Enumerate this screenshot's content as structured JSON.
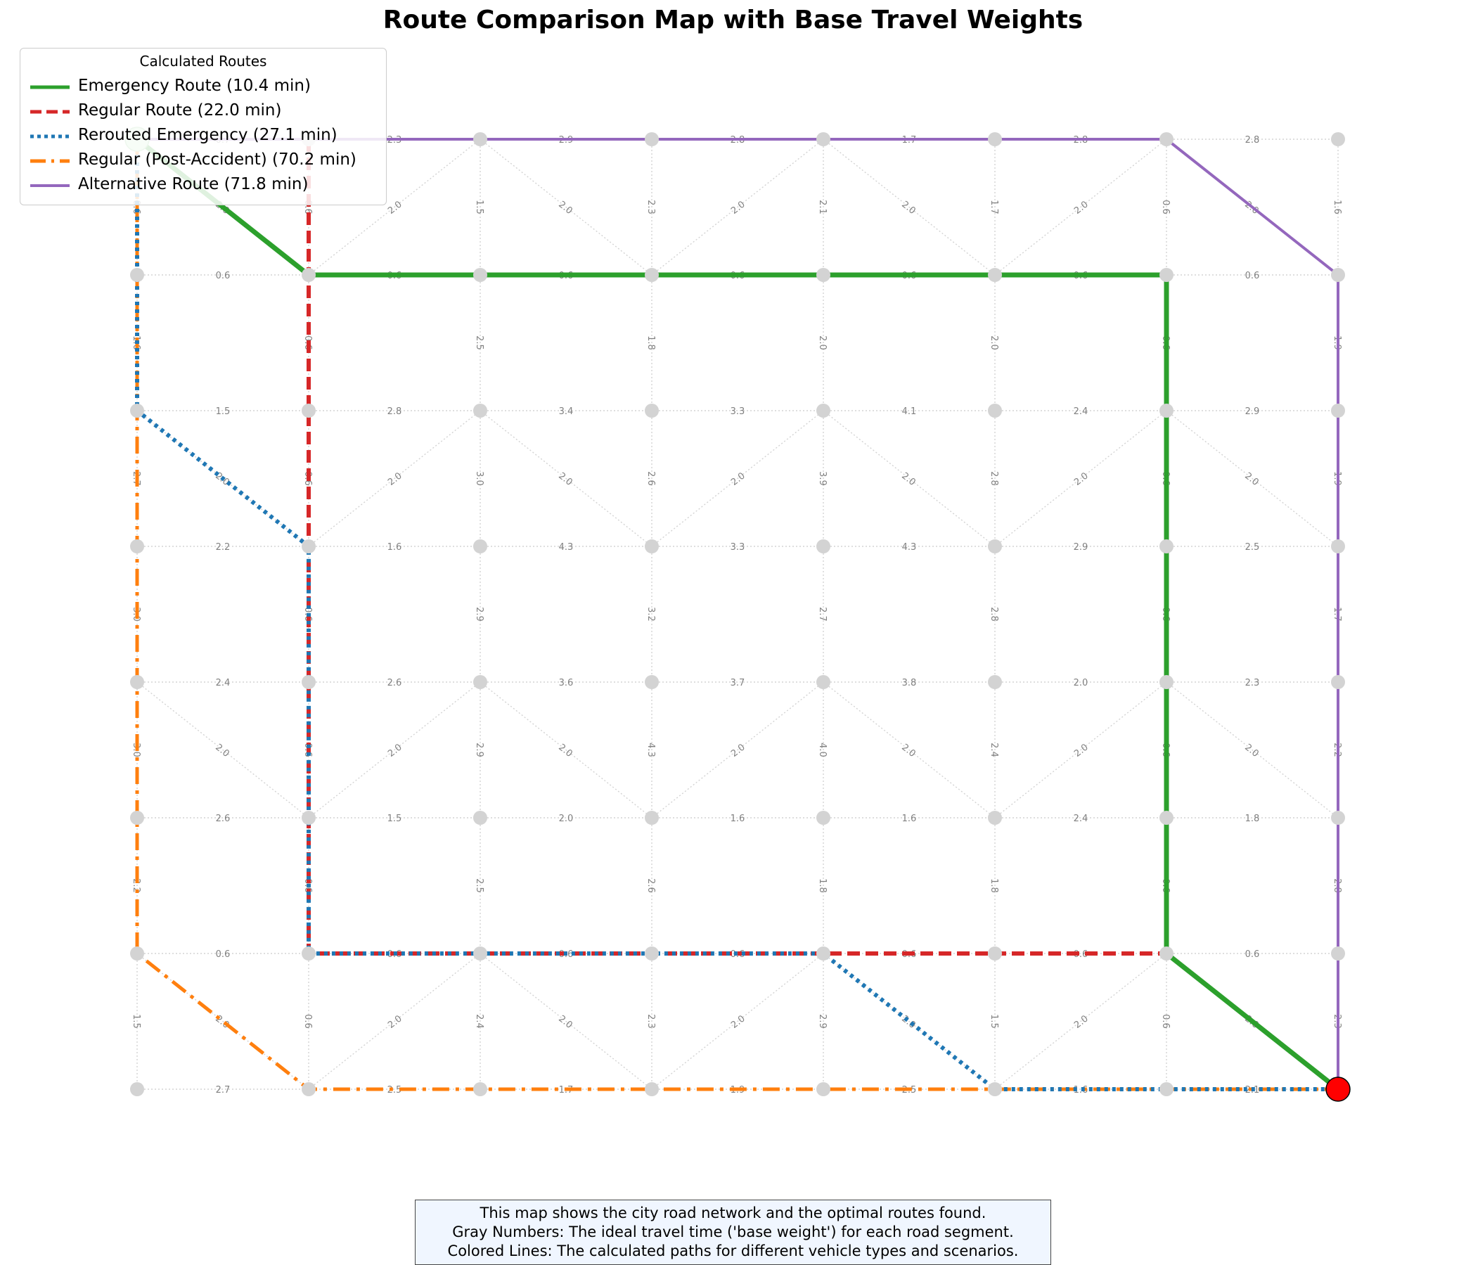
{
  "title": "Route Comparison Map with Base Travel Weights",
  "legend": {
    "title": "Calculated Routes",
    "entries": [
      {
        "label": "Emergency Route (10.4 min)",
        "color": "#2ca02c",
        "style": "solid"
      },
      {
        "label": "Regular Route (22.0 min)",
        "color": "#d62728",
        "style": "dashed"
      },
      {
        "label": "Rerouted Emergency (27.1 min)",
        "color": "#1f77b4",
        "style": "dotted"
      },
      {
        "label": "Regular (Post-Accident) (70.2 min)",
        "color": "#ff7f0e",
        "style": "dashdot"
      },
      {
        "label": "Alternative Route (71.8 min)",
        "color": "#9467bd",
        "style": "solid-thin"
      }
    ]
  },
  "caption": {
    "line1": "This map shows the city road network and the optimal routes found.",
    "line2": "Gray Numbers: The ideal travel time ('base weight') for each road segment.",
    "line3": "Colored Lines: The calculated paths for different vehicle types and scenarios."
  },
  "graph": {
    "rows": 8,
    "cols": 8,
    "start_node": [
      0,
      0
    ],
    "end_node": [
      7,
      7
    ],
    "start_color": "#c8f0c8",
    "end_color": "#ff0000",
    "node_color": "#d3d3d3",
    "edge_color": "#d3d3d3",
    "h_weights": [
      [
        "0.7",
        "2.3",
        "2.9",
        "2.8",
        "1.7",
        "2.8",
        "2.8"
      ],
      [
        "0.6",
        "0.6",
        "0.6",
        "0.6",
        "0.6",
        "0.6",
        "0.6"
      ],
      [
        "1.5",
        "2.8",
        "3.4",
        "3.3",
        "4.1",
        "2.4",
        "2.9"
      ],
      [
        "2.2",
        "1.6",
        "4.3",
        "3.3",
        "4.3",
        "2.9",
        "2.5"
      ],
      [
        "2.4",
        "2.6",
        "3.6",
        "3.7",
        "3.8",
        "2.0",
        "2.3"
      ],
      [
        "2.6",
        "1.5",
        "2.0",
        "1.6",
        "1.6",
        "2.4",
        "1.8"
      ],
      [
        "0.6",
        "0.6",
        "0.6",
        "0.6",
        "0.6",
        "0.6",
        "0.6"
      ],
      [
        "2.7",
        "2.5",
        "1.7",
        "1.9",
        "2.5",
        "1.6",
        "2.1"
      ]
    ],
    "v_weights": [
      [
        "0.6",
        "0.6",
        "1.5",
        "2.3",
        "2.1",
        "1.7",
        "0.6",
        "1.6"
      ],
      [
        "1.6",
        "0.6",
        "2.5",
        "1.8",
        "2.0",
        "2.0",
        "0.6",
        "1.9"
      ],
      [
        "2.7",
        "0.6",
        "3.0",
        "2.6",
        "3.9",
        "2.8",
        "0.6",
        "1.9"
      ],
      [
        "3.0",
        "0.6",
        "2.9",
        "3.2",
        "2.7",
        "2.8",
        "0.6",
        "1.7"
      ],
      [
        "3.0",
        "0.6",
        "2.9",
        "4.3",
        "4.0",
        "2.4",
        "0.6",
        "2.2"
      ],
      [
        "2.2",
        "0.6",
        "2.5",
        "2.6",
        "1.8",
        "1.8",
        "0.6",
        "2.8"
      ],
      [
        "1.5",
        "0.6",
        "2.4",
        "2.3",
        "2.9",
        "1.5",
        "0.6",
        "2.3"
      ]
    ],
    "diagonals": [
      {
        "from": [
          0,
          0
        ],
        "to": [
          1,
          1
        ],
        "label": "2.0"
      },
      {
        "from": [
          1,
          1
        ],
        "to": [
          0,
          2
        ],
        "label": "2.0"
      },
      {
        "from": [
          0,
          2
        ],
        "to": [
          1,
          3
        ],
        "label": "2.0"
      },
      {
        "from": [
          1,
          3
        ],
        "to": [
          0,
          4
        ],
        "label": "2.0"
      },
      {
        "from": [
          0,
          4
        ],
        "to": [
          1,
          5
        ],
        "label": "2.0"
      },
      {
        "from": [
          1,
          5
        ],
        "to": [
          0,
          6
        ],
        "label": "2.0"
      },
      {
        "from": [
          0,
          6
        ],
        "to": [
          1,
          7
        ],
        "label": "2.0"
      },
      {
        "from": [
          2,
          0
        ],
        "to": [
          3,
          1
        ],
        "label": "2.0"
      },
      {
        "from": [
          3,
          1
        ],
        "to": [
          2,
          2
        ],
        "label": "2.0"
      },
      {
        "from": [
          2,
          2
        ],
        "to": [
          3,
          3
        ],
        "label": "2.0"
      },
      {
        "from": [
          3,
          3
        ],
        "to": [
          2,
          4
        ],
        "label": "2.0"
      },
      {
        "from": [
          2,
          4
        ],
        "to": [
          3,
          5
        ],
        "label": "2.0"
      },
      {
        "from": [
          3,
          5
        ],
        "to": [
          2,
          6
        ],
        "label": "2.0"
      },
      {
        "from": [
          2,
          6
        ],
        "to": [
          3,
          7
        ],
        "label": "2.0"
      },
      {
        "from": [
          4,
          0
        ],
        "to": [
          5,
          1
        ],
        "label": "2.0"
      },
      {
        "from": [
          5,
          1
        ],
        "to": [
          4,
          2
        ],
        "label": "2.0"
      },
      {
        "from": [
          4,
          2
        ],
        "to": [
          5,
          3
        ],
        "label": "2.0"
      },
      {
        "from": [
          5,
          3
        ],
        "to": [
          4,
          4
        ],
        "label": "2.0"
      },
      {
        "from": [
          4,
          4
        ],
        "to": [
          5,
          5
        ],
        "label": "2.0"
      },
      {
        "from": [
          5,
          5
        ],
        "to": [
          4,
          6
        ],
        "label": "2.0"
      },
      {
        "from": [
          4,
          6
        ],
        "to": [
          5,
          7
        ],
        "label": "2.0"
      },
      {
        "from": [
          6,
          0
        ],
        "to": [
          7,
          1
        ],
        "label": "2.0"
      },
      {
        "from": [
          7,
          1
        ],
        "to": [
          6,
          2
        ],
        "label": "2.0"
      },
      {
        "from": [
          6,
          2
        ],
        "to": [
          7,
          3
        ],
        "label": "2.0"
      },
      {
        "from": [
          7,
          3
        ],
        "to": [
          6,
          4
        ],
        "label": "2.0"
      },
      {
        "from": [
          6,
          4
        ],
        "to": [
          7,
          5
        ],
        "label": "2.0"
      },
      {
        "from": [
          7,
          5
        ],
        "to": [
          6,
          6
        ],
        "label": "2.0"
      },
      {
        "from": [
          6,
          6
        ],
        "to": [
          7,
          7
        ],
        "label": "2.0"
      }
    ],
    "routes": [
      {
        "name": "alternative",
        "color": "#9467bd",
        "style": "solid-thin",
        "path": [
          [
            0,
            0
          ],
          [
            0,
            1
          ],
          [
            0,
            2
          ],
          [
            0,
            3
          ],
          [
            0,
            4
          ],
          [
            0,
            5
          ],
          [
            0,
            6
          ],
          [
            1,
            7
          ],
          [
            2,
            7
          ],
          [
            3,
            7
          ],
          [
            4,
            7
          ],
          [
            5,
            7
          ],
          [
            6,
            7
          ],
          [
            7,
            7
          ]
        ]
      },
      {
        "name": "post-accident",
        "color": "#ff7f0e",
        "style": "dashdot",
        "path": [
          [
            0,
            0
          ],
          [
            1,
            0
          ],
          [
            2,
            0
          ],
          [
            3,
            0
          ],
          [
            4,
            0
          ],
          [
            5,
            0
          ],
          [
            6,
            0
          ],
          [
            7,
            1
          ],
          [
            7,
            2
          ],
          [
            7,
            3
          ],
          [
            7,
            4
          ],
          [
            7,
            5
          ],
          [
            7,
            6
          ],
          [
            7,
            7
          ]
        ]
      },
      {
        "name": "regular",
        "color": "#d62728",
        "style": "dashed",
        "path": [
          [
            0,
            1
          ],
          [
            1,
            1
          ],
          [
            2,
            1
          ],
          [
            3,
            1
          ],
          [
            4,
            1
          ],
          [
            5,
            1
          ],
          [
            6,
            1
          ],
          [
            6,
            2
          ],
          [
            6,
            3
          ],
          [
            6,
            4
          ],
          [
            6,
            5
          ],
          [
            6,
            6
          ],
          [
            7,
            7
          ]
        ]
      },
      {
        "name": "rerouted",
        "color": "#1f77b4",
        "style": "dotted",
        "path": [
          [
            0,
            0
          ],
          [
            1,
            0
          ],
          [
            2,
            0
          ],
          [
            3,
            1
          ],
          [
            4,
            1
          ],
          [
            5,
            1
          ],
          [
            6,
            1
          ],
          [
            6,
            2
          ],
          [
            6,
            3
          ],
          [
            6,
            4
          ],
          [
            7,
            5
          ],
          [
            7,
            6
          ],
          [
            7,
            7
          ]
        ]
      },
      {
        "name": "emergency",
        "color": "#2ca02c",
        "style": "solid",
        "path": [
          [
            0,
            0
          ],
          [
            1,
            1
          ],
          [
            1,
            2
          ],
          [
            1,
            3
          ],
          [
            1,
            4
          ],
          [
            1,
            5
          ],
          [
            1,
            6
          ],
          [
            2,
            6
          ],
          [
            3,
            6
          ],
          [
            4,
            6
          ],
          [
            5,
            6
          ],
          [
            6,
            6
          ],
          [
            7,
            7
          ]
        ]
      }
    ]
  }
}
